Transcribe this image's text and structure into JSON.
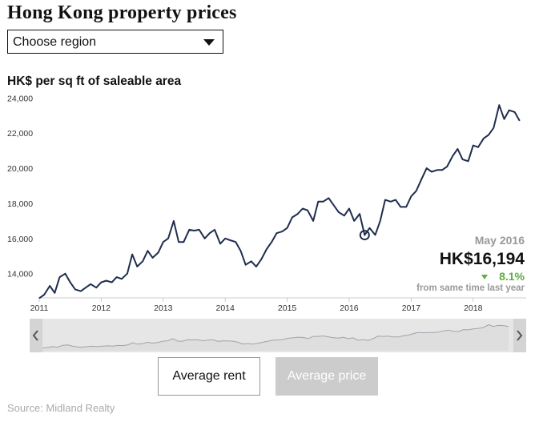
{
  "title": "Hong Kong property prices",
  "region_select": {
    "selected": "Choose region"
  },
  "colors": {
    "line": "#1f2d4d",
    "down": "#5cae3f",
    "navigator_fill": "#e2e2e2",
    "button_active": "#cccccc"
  },
  "chart_data": {
    "type": "line",
    "ylabel": "HK$ per sq ft of saleable area",
    "ylim": [
      12800,
      24200
    ],
    "y_ticks": [
      "24,000",
      "22,000",
      "20,000",
      "18,000",
      "16,000",
      "14,000"
    ],
    "y_tick_values": [
      24000,
      22000,
      20000,
      18000,
      16000,
      14000
    ],
    "x_tick_labels": [
      "2011",
      "2012",
      "2013",
      "2014",
      "2015",
      "2016",
      "2017",
      "2018"
    ],
    "x_tick_values": [
      2011,
      2012,
      2013,
      2014,
      2015,
      2016,
      2017,
      2018
    ],
    "xlim": [
      2011.0,
      2018.83
    ],
    "grid": false,
    "series": [
      {
        "values": [
          [
            2011.0,
            12600
          ],
          [
            2011.08,
            12800
          ],
          [
            2011.17,
            13300
          ],
          [
            2011.25,
            12900
          ],
          [
            2011.33,
            13800
          ],
          [
            2011.42,
            14000
          ],
          [
            2011.5,
            13500
          ],
          [
            2011.58,
            13100
          ],
          [
            2011.67,
            13000
          ],
          [
            2011.75,
            13200
          ],
          [
            2011.83,
            13400
          ],
          [
            2011.92,
            13200
          ],
          [
            2012.0,
            13500
          ],
          [
            2012.08,
            13600
          ],
          [
            2012.17,
            13500
          ],
          [
            2012.25,
            13800
          ],
          [
            2012.33,
            13700
          ],
          [
            2012.42,
            14000
          ],
          [
            2012.5,
            15100
          ],
          [
            2012.58,
            14400
          ],
          [
            2012.67,
            14700
          ],
          [
            2012.75,
            15300
          ],
          [
            2012.83,
            14900
          ],
          [
            2012.92,
            15200
          ],
          [
            2013.0,
            15800
          ],
          [
            2013.08,
            16000
          ],
          [
            2013.17,
            17000
          ],
          [
            2013.25,
            15800
          ],
          [
            2013.33,
            15800
          ],
          [
            2013.42,
            16500
          ],
          [
            2013.5,
            16450
          ],
          [
            2013.58,
            16500
          ],
          [
            2013.67,
            16000
          ],
          [
            2013.75,
            16300
          ],
          [
            2013.83,
            16500
          ],
          [
            2013.92,
            15700
          ],
          [
            2014.0,
            16000
          ],
          [
            2014.08,
            15900
          ],
          [
            2014.17,
            15800
          ],
          [
            2014.25,
            15300
          ],
          [
            2014.33,
            14500
          ],
          [
            2014.42,
            14700
          ],
          [
            2014.5,
            14400
          ],
          [
            2014.58,
            14800
          ],
          [
            2014.67,
            15400
          ],
          [
            2014.75,
            15800
          ],
          [
            2014.83,
            16300
          ],
          [
            2014.92,
            16400
          ],
          [
            2015.0,
            16600
          ],
          [
            2015.08,
            17200
          ],
          [
            2015.17,
            17400
          ],
          [
            2015.25,
            17700
          ],
          [
            2015.33,
            17600
          ],
          [
            2015.42,
            17000
          ],
          [
            2015.5,
            18100
          ],
          [
            2015.58,
            18100
          ],
          [
            2015.67,
            18300
          ],
          [
            2015.75,
            17900
          ],
          [
            2015.83,
            17500
          ],
          [
            2015.92,
            17300
          ],
          [
            2016.0,
            17700
          ],
          [
            2016.08,
            17000
          ],
          [
            2016.17,
            17400
          ],
          [
            2016.25,
            16194
          ],
          [
            2016.33,
            16600
          ],
          [
            2016.42,
            16200
          ],
          [
            2016.5,
            17000
          ],
          [
            2016.58,
            18200
          ],
          [
            2016.67,
            18100
          ],
          [
            2016.75,
            18200
          ],
          [
            2016.83,
            17800
          ],
          [
            2016.92,
            17800
          ],
          [
            2017.0,
            18400
          ],
          [
            2017.08,
            18700
          ],
          [
            2017.17,
            19400
          ],
          [
            2017.25,
            20000
          ],
          [
            2017.33,
            19800
          ],
          [
            2017.42,
            19900
          ],
          [
            2017.5,
            19900
          ],
          [
            2017.58,
            20100
          ],
          [
            2017.67,
            20700
          ],
          [
            2017.75,
            21100
          ],
          [
            2017.83,
            20500
          ],
          [
            2017.92,
            20400
          ],
          [
            2018.0,
            21300
          ],
          [
            2018.08,
            21200
          ],
          [
            2018.17,
            21700
          ],
          [
            2018.25,
            21900
          ],
          [
            2018.33,
            22300
          ],
          [
            2018.42,
            23600
          ],
          [
            2018.5,
            22800
          ],
          [
            2018.58,
            23300
          ],
          [
            2018.67,
            23200
          ],
          [
            2018.75,
            22700
          ]
        ]
      }
    ],
    "highlight": {
      "x": 2016.25,
      "y": 16194
    },
    "annotation": {
      "date": "May 2016",
      "price": "HK$16,194",
      "change_icon": "triangle-down-icon",
      "change_pct": "8.1%",
      "change_note": "from same time last year"
    }
  },
  "buttons": {
    "rent": "Average rent",
    "price": "Average price"
  },
  "navigator": {
    "left_icon": "chevron-left-icon",
    "right_icon": "chevron-right-icon"
  },
  "source": "Source: Midland Realty"
}
